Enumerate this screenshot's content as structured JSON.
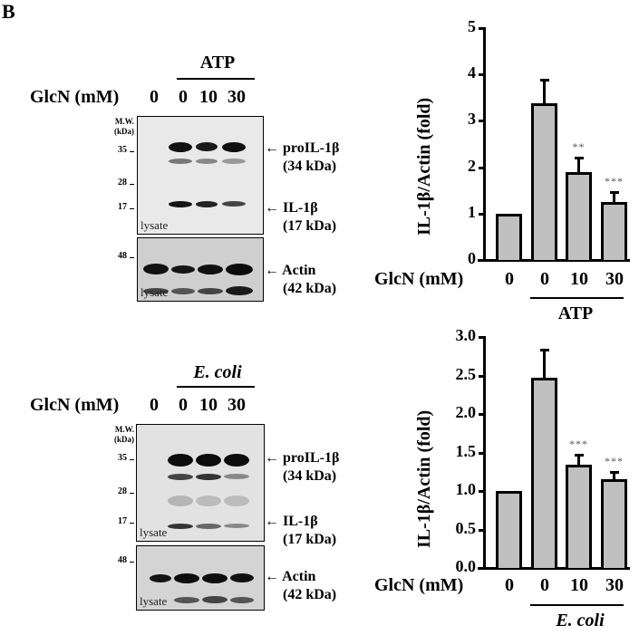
{
  "panel_label": "B",
  "glcn_label": "GlcN (mM)",
  "lanes": [
    "0",
    "0",
    "10",
    "30"
  ],
  "mw_header": [
    "M.W.",
    "(kDa)"
  ],
  "lysate_label": "lysate",
  "blots": [
    {
      "treatment": "ATP",
      "mw_markers": [
        "35",
        "28",
        "17"
      ],
      "actin_marker": "48",
      "labels": {
        "pro_name": "proIL-1β",
        "pro_kda": "(34 kDa)",
        "il_name": "IL-1β",
        "il_kda": "(17 kDa)",
        "actin_name": "Actin",
        "actin_kda": "(42 kDa)"
      }
    },
    {
      "treatment": "E. coli",
      "mw_markers": [
        "35",
        "28",
        "17"
      ],
      "actin_marker": "48",
      "labels": {
        "pro_name": "proIL-1β",
        "pro_kda": "(34 kDa)",
        "il_name": "IL-1β",
        "il_kda": "(17 kDa)",
        "actin_name": "Actin",
        "actin_kda": "(42 kDa)"
      }
    }
  ],
  "charts": [
    {
      "ylabel": "IL-1β/Actin (fold)",
      "yticks": [
        "0",
        "1",
        "2",
        "3",
        "4",
        "5"
      ],
      "treatment": "ATP",
      "significance": [
        "",
        "",
        "**",
        "***"
      ]
    },
    {
      "ylabel": "IL-1β/Actin (fold)",
      "yticks": [
        "0.0",
        "0.5",
        "1.0",
        "1.5",
        "2.0",
        "2.5",
        "3.0"
      ],
      "treatment": "E. coli",
      "significance": [
        "",
        "",
        "***",
        "***"
      ]
    }
  ],
  "chart_data": [
    {
      "type": "bar",
      "title": "",
      "xlabel": "GlcN (mM)",
      "ylabel": "IL-1β/Actin (fold)",
      "categories": [
        "0",
        "0 (ATP)",
        "10 (ATP)",
        "30 (ATP)"
      ],
      "values": [
        1.0,
        3.38,
        1.89,
        1.25
      ],
      "error_upper": [
        0.0,
        0.52,
        0.33,
        0.23
      ],
      "significance": [
        "",
        "",
        "**",
        "***"
      ],
      "group_label": "ATP",
      "ylim": [
        0,
        5
      ],
      "yticks": [
        0,
        1,
        2,
        3,
        4,
        5
      ],
      "grid": false,
      "legend": null,
      "bar_color": "#c0c0c0"
    },
    {
      "type": "bar",
      "title": "",
      "xlabel": "GlcN (mM)",
      "ylabel": "IL-1β/Actin (fold)",
      "categories": [
        "0",
        "0 (E. coli)",
        "10 (E. coli)",
        "30 (E. coli)"
      ],
      "values": [
        1.0,
        2.47,
        1.34,
        1.15
      ],
      "error_upper": [
        0.0,
        0.38,
        0.14,
        0.11
      ],
      "significance": [
        "",
        "",
        "***",
        "***"
      ],
      "group_label": "E. coli",
      "ylim": [
        0,
        3.0
      ],
      "yticks": [
        0.0,
        0.5,
        1.0,
        1.5,
        2.0,
        2.5,
        3.0
      ],
      "grid": false,
      "legend": null,
      "bar_color": "#c0c0c0"
    }
  ]
}
